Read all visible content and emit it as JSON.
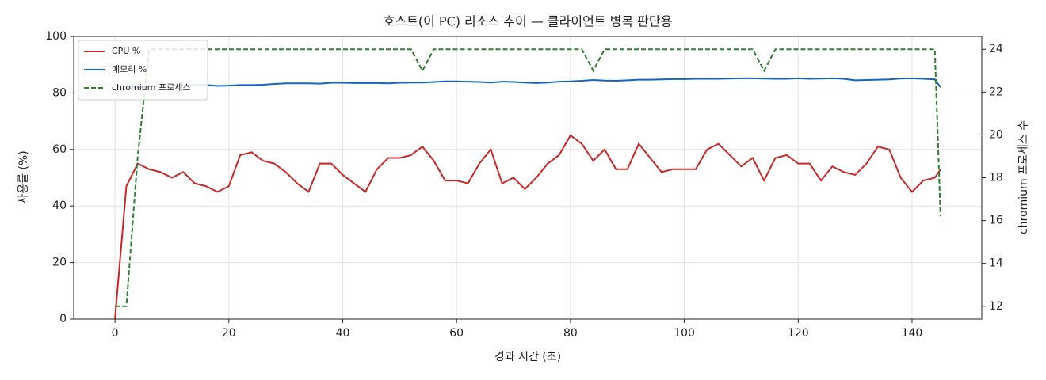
{
  "chart_data": {
    "type": "line",
    "title": "호스트(이 PC) 리소스 추이 — 클라이언트 병목 판단용",
    "xlabel": "경과 시간 (초)",
    "ylabel": "사용률 (%)",
    "y2label": "chromium 프로세스 수",
    "x": [
      0,
      2,
      4,
      6,
      8,
      10,
      12,
      14,
      16,
      18,
      20,
      22,
      24,
      26,
      28,
      30,
      32,
      34,
      36,
      38,
      40,
      42,
      44,
      46,
      48,
      50,
      52,
      54,
      56,
      58,
      60,
      62,
      64,
      66,
      68,
      70,
      72,
      74,
      76,
      78,
      80,
      82,
      84,
      86,
      88,
      90,
      92,
      94,
      96,
      98,
      100,
      102,
      104,
      106,
      108,
      110,
      112,
      114,
      116,
      118,
      120,
      122,
      124,
      126,
      128,
      130,
      132,
      134,
      136,
      138,
      140,
      142,
      144,
      145
    ],
    "series": [
      {
        "name": "CPU %",
        "color": "#c62828",
        "linestyle": "solid",
        "axis": "y",
        "values": [
          0,
          47,
          55,
          53,
          52,
          50,
          52,
          48,
          47,
          45,
          47,
          58,
          59,
          56,
          55,
          52,
          48,
          45,
          55,
          55,
          51,
          48,
          45,
          53,
          57,
          57,
          58,
          61,
          56,
          49,
          49,
          48,
          55,
          60,
          48,
          50,
          46,
          50,
          55,
          58,
          65,
          62,
          56,
          60,
          53,
          53,
          62,
          57,
          52,
          53,
          53,
          53,
          60,
          62,
          58,
          54,
          57,
          49,
          57,
          58,
          55,
          55,
          49,
          54,
          52,
          51,
          55,
          61,
          60,
          50,
          45,
          49,
          50,
          53
        ]
      },
      {
        "name": "메모리 %",
        "color": "#1565c0",
        "linestyle": "solid",
        "axis": "y",
        "values": [
          81,
          81.5,
          82,
          82.3,
          82.5,
          82.6,
          82.7,
          82.8,
          82.8,
          82.5,
          82.6,
          82.8,
          82.8,
          82.9,
          83.2,
          83.4,
          83.4,
          83.4,
          83.3,
          83.6,
          83.6,
          83.5,
          83.5,
          83.5,
          83.4,
          83.6,
          83.7,
          83.7,
          83.9,
          84.1,
          84.1,
          84,
          83.9,
          83.7,
          84,
          83.9,
          83.7,
          83.5,
          83.7,
          84,
          84.1,
          84.3,
          84.6,
          84.4,
          84.3,
          84.5,
          84.7,
          84.7,
          84.8,
          84.9,
          84.9,
          85,
          85,
          85,
          85.1,
          85.2,
          85.2,
          85.1,
          85,
          85,
          85.2,
          85,
          85.1,
          85.2,
          85,
          84.5,
          84.6,
          84.7,
          84.8,
          85.1,
          85.2,
          85,
          84.8,
          82
        ]
      },
      {
        "name": "chromium 프로세스",
        "color": "#2e7d32",
        "linestyle": "dashed",
        "axis": "y2",
        "values": [
          12,
          12,
          19,
          24,
          24,
          24,
          24,
          24,
          24,
          24,
          24,
          24,
          24,
          24,
          24,
          24,
          24,
          24,
          24,
          24,
          24,
          24,
          24,
          24,
          24,
          24,
          24,
          23,
          24,
          24,
          24,
          24,
          24,
          24,
          24,
          24,
          24,
          24,
          24,
          24,
          24,
          24,
          23,
          24,
          24,
          24,
          24,
          24,
          24,
          24,
          24,
          24,
          24,
          24,
          24,
          24,
          24,
          23,
          24,
          24,
          24,
          24,
          24,
          24,
          24,
          24,
          24,
          24,
          24,
          24,
          24,
          24,
          24,
          16.2
        ]
      }
    ],
    "xlim": [
      -7.25,
      152.25
    ],
    "xticks": [
      0,
      20,
      40,
      60,
      80,
      100,
      120,
      140
    ],
    "ylim": [
      0,
      100
    ],
    "yticks": [
      0,
      20,
      40,
      60,
      80,
      100
    ],
    "y2lim": [
      11.4,
      24.6
    ],
    "y2ticks": [
      12,
      14,
      16,
      18,
      20,
      22,
      24
    ],
    "grid": true,
    "legend": "upper left"
  }
}
